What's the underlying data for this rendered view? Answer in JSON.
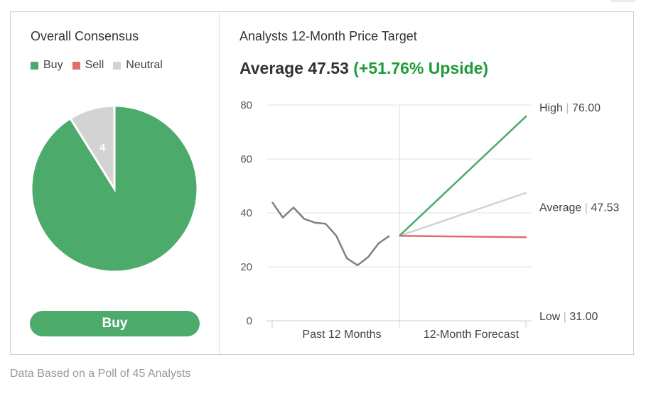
{
  "left": {
    "title": "Overall Consensus",
    "legend": [
      {
        "label": "Buy",
        "color": "#4cab6a"
      },
      {
        "label": "Sell",
        "color": "#e06c6c"
      },
      {
        "label": "Neutral",
        "color": "#d3d3d3"
      }
    ],
    "button_label": "Buy"
  },
  "right": {
    "title": "Analysts 12-Month Price Target",
    "average_prefix": "Average 47.53",
    "average_upside": "(+51.76% Upside)"
  },
  "footer": "Data Based on a Poll of 45 Analysts",
  "colors": {
    "buy": "#4cab6a",
    "sell": "#e06c6c",
    "neutral": "#d3d3d3",
    "history": "#808080",
    "upside": "#1e9b3a"
  },
  "chart_data": [
    {
      "type": "pie",
      "slices": [
        {
          "label": "Buy",
          "value": 41,
          "color": "#4cab6a"
        },
        {
          "label": "Sell",
          "value": 0,
          "color": "#e06c6c"
        },
        {
          "label": "Neutral",
          "value": 4,
          "color": "#d3d3d3"
        }
      ]
    },
    {
      "type": "line",
      "ylim": [
        0,
        80
      ],
      "yticks": [
        0,
        20,
        40,
        60,
        80
      ],
      "categories": [
        "Past 12 Months",
        "12-Month Forecast"
      ],
      "history": [
        44,
        38.3,
        42,
        37.8,
        36.4,
        36,
        31.6,
        23.2,
        20.6,
        23.6,
        28.8,
        31.5
      ],
      "forecast_start": 31.5,
      "targets": [
        {
          "label": "High",
          "value": "76.00",
          "y": 76.0,
          "color": "#4cab6a"
        },
        {
          "label": "Average",
          "value": "47.53",
          "y": 47.53,
          "color": "#d3d3d3"
        },
        {
          "label": "Low",
          "value": "31.00",
          "y": 31.0,
          "color": "#e06c6c"
        }
      ]
    }
  ]
}
